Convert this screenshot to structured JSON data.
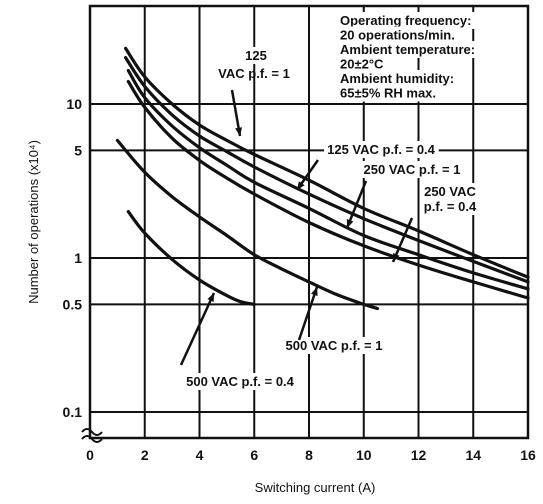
{
  "chart_data": {
    "type": "line",
    "xlabel": "Switching current (A)",
    "ylabel": "Number of operations (x10⁴)",
    "xlim": [
      0,
      16
    ],
    "ylim": [
      0.1,
      25
    ],
    "y_scale": "log",
    "grid": true,
    "x_ticks": [
      "0",
      "2",
      "4",
      "6",
      "8",
      "10",
      "12",
      "14",
      "16"
    ],
    "y_ticks": [
      {
        "value": 0.1,
        "label": "0.1"
      },
      {
        "value": 0.5,
        "label": "0.5"
      },
      {
        "value": 1,
        "label": "1"
      },
      {
        "value": 5,
        "label": "5"
      },
      {
        "value": 10,
        "label": "10"
      }
    ],
    "conditions": [
      "Operating frequency:",
      "20 operations/min.",
      "Ambient temperature:",
      "20±2°C",
      "Ambient humidity:",
      "65±5% RH max."
    ],
    "series": [
      {
        "name": "125 VAC p.f. = 1",
        "label_lines": [
          "125",
          "VAC p.f. = 1"
        ],
        "x": [
          1.3,
          2,
          3,
          4,
          5,
          6,
          8,
          10,
          12,
          14,
          16
        ],
        "y": [
          23,
          15,
          10,
          7.3,
          5.8,
          4.7,
          3.2,
          2.1,
          1.5,
          1.05,
          0.75
        ]
      },
      {
        "name": "125 VAC p.f. = 0.4",
        "label_lines": [
          "125 VAC p.f. = 0.4"
        ],
        "x": [
          1.3,
          2,
          3,
          4,
          5,
          6,
          8,
          10,
          12,
          14,
          16
        ],
        "y": [
          20,
          13,
          8.5,
          6.2,
          4.9,
          3.9,
          2.6,
          1.8,
          1.3,
          0.95,
          0.7
        ]
      },
      {
        "name": "250 VAC p.f. = 1",
        "label_lines": [
          "250 VAC p.f. = 1"
        ],
        "x": [
          1.4,
          2,
          3,
          4,
          5,
          6,
          8,
          10,
          12,
          14,
          16
        ],
        "y": [
          16.5,
          11,
          7.2,
          5.2,
          4.0,
          3.1,
          2.1,
          1.4,
          1.05,
          0.8,
          0.63
        ]
      },
      {
        "name": "250 VAC p.f. = 0.4",
        "label_lines": [
          "250 VAC",
          "p.f. = 0.4"
        ],
        "x": [
          1.4,
          2,
          3,
          4,
          5,
          6,
          8,
          10,
          12,
          14,
          16
        ],
        "y": [
          14,
          9.5,
          6.0,
          4.3,
          3.3,
          2.6,
          1.7,
          1.2,
          0.9,
          0.7,
          0.55
        ]
      },
      {
        "name": "500 VAC p.f. = 1",
        "label_lines": [
          "500 VAC p.f. = 1"
        ],
        "x": [
          1,
          2,
          3,
          4,
          5,
          6,
          7,
          8,
          9,
          10,
          10.5
        ],
        "y": [
          5.8,
          3.6,
          2.5,
          1.85,
          1.4,
          1.05,
          0.85,
          0.7,
          0.58,
          0.5,
          0.47
        ]
      },
      {
        "name": "500 VAC p.f. = 0.4",
        "label_lines": [
          "500 VAC p.f. = 0.4"
        ],
        "x": [
          1.4,
          2,
          3,
          4,
          5,
          5.5,
          6
        ],
        "y": [
          2.0,
          1.45,
          0.98,
          0.72,
          0.57,
          0.52,
          0.5
        ]
      }
    ]
  }
}
